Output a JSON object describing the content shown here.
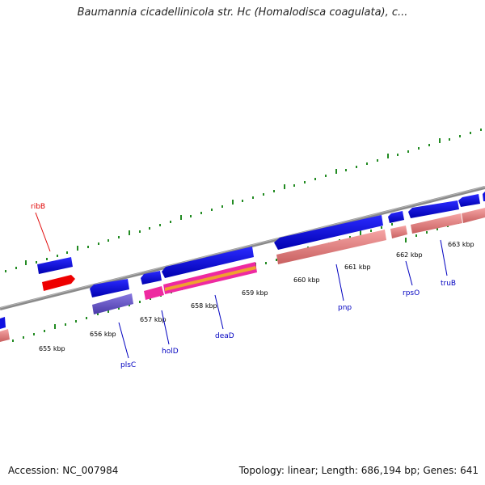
{
  "title": "Baumannia cicadellinicola str. Hc (Homalodisca coagulata), c...",
  "footer": {
    "accession": "Accession: NC_007984",
    "summary": "Topology: linear; Length: 686,194 bp; Genes: 641"
  },
  "kbp_labels": [
    "655 kbp",
    "656 kbp",
    "657 kbp",
    "658 kbp",
    "659 kbp",
    "660 kbp",
    "661 kbp",
    "662 kbp",
    "663 kbp"
  ],
  "genes": [
    {
      "name": "ribB",
      "color": "#e00000"
    },
    {
      "name": "plsC",
      "color": "#0000c0"
    },
    {
      "name": "holD",
      "color": "#0000c0"
    },
    {
      "name": "deaD",
      "color": "#0000c0"
    },
    {
      "name": "pnp",
      "color": "#0000c0"
    },
    {
      "name": "rpsO",
      "color": "#0000c0"
    },
    {
      "name": "truB",
      "color": "#0000c0"
    }
  ],
  "colors": {
    "backbone": "#8a8a8a",
    "cds": "#1010e0",
    "gene_pink": "#f09090",
    "trna_red": "#ee0000",
    "magenta": "#ee2aa0",
    "purple": "#6a5acd",
    "tick_green": "#228b22"
  }
}
